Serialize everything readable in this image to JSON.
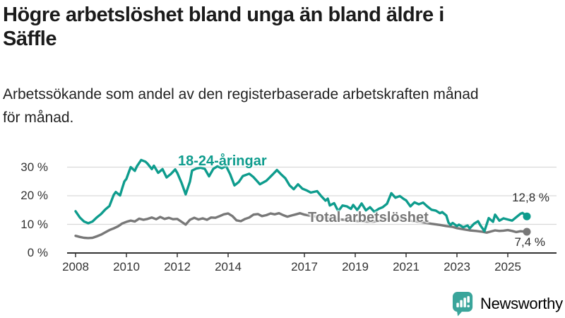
{
  "header": {
    "title": "Högre arbetslöshet bland unga än bland äldre i\nSäffle",
    "subtitle": "Arbetssökande som andel av den registerbaserade arbetskraften månad\nför månad."
  },
  "branding": {
    "logo_text": "Newsworthy",
    "logo_icon": "speech-bubble-bar-chart",
    "logo_color": "#35a39a"
  },
  "colors": {
    "accent_teal": "#0e9c8d",
    "line_gray": "#787878",
    "grid": "#d9d9d9",
    "axis": "#333333",
    "text": "#1b1b1b"
  },
  "chart_data": {
    "type": "line",
    "unit": "%",
    "grid": "horizontal",
    "xlim": [
      2007.7,
      2026.3
    ],
    "ylim": [
      0,
      33
    ],
    "x_ticks": [
      {
        "value": 2008,
        "label": "2008"
      },
      {
        "value": 2010,
        "label": "2010"
      },
      {
        "value": 2012,
        "label": "2012"
      },
      {
        "value": 2014,
        "label": "2014"
      },
      {
        "value": 2017,
        "label": "2017"
      },
      {
        "value": 2019,
        "label": "2019"
      },
      {
        "value": 2021,
        "label": "2021"
      },
      {
        "value": 2023,
        "label": "2023"
      },
      {
        "value": 2025,
        "label": "2025"
      }
    ],
    "y_ticks": [
      {
        "value": 0,
        "label": "0 %"
      },
      {
        "value": 10,
        "label": "10 %"
      },
      {
        "value": 20,
        "label": "20 %"
      },
      {
        "value": 30,
        "label": "30 %"
      }
    ],
    "series": [
      {
        "name": "18-24-åringar",
        "color": "#0e9c8d",
        "end_label": "12,8 %",
        "end_value": 12.8,
        "points": [
          [
            2008.0,
            14.6
          ],
          [
            2008.17,
            12.4
          ],
          [
            2008.33,
            11.0
          ],
          [
            2008.5,
            10.4
          ],
          [
            2008.67,
            11.0
          ],
          [
            2008.83,
            12.4
          ],
          [
            2009.0,
            13.6
          ],
          [
            2009.17,
            15.2
          ],
          [
            2009.33,
            16.4
          ],
          [
            2009.5,
            20.3
          ],
          [
            2009.58,
            21.3
          ],
          [
            2009.75,
            20.1
          ],
          [
            2009.83,
            22.5
          ],
          [
            2009.92,
            25.0
          ],
          [
            2010.0,
            25.9
          ],
          [
            2010.08,
            27.9
          ],
          [
            2010.17,
            30.0
          ],
          [
            2010.33,
            28.7
          ],
          [
            2010.42,
            30.4
          ],
          [
            2010.58,
            32.5
          ],
          [
            2010.75,
            31.9
          ],
          [
            2010.83,
            31.2
          ],
          [
            2011.0,
            29.3
          ],
          [
            2011.08,
            30.5
          ],
          [
            2011.25,
            28.0
          ],
          [
            2011.42,
            29.3
          ],
          [
            2011.58,
            26.4
          ],
          [
            2011.75,
            27.6
          ],
          [
            2011.92,
            29.2
          ],
          [
            2012.0,
            28.0
          ],
          [
            2012.17,
            24.5
          ],
          [
            2012.33,
            20.5
          ],
          [
            2012.5,
            25.0
          ],
          [
            2012.58,
            28.8
          ],
          [
            2012.75,
            29.5
          ],
          [
            2012.92,
            29.8
          ],
          [
            2013.08,
            29.4
          ],
          [
            2013.25,
            26.8
          ],
          [
            2013.42,
            29.4
          ],
          [
            2013.58,
            30.3
          ],
          [
            2013.75,
            29.6
          ],
          [
            2013.92,
            30.4
          ],
          [
            2014.08,
            27.5
          ],
          [
            2014.25,
            23.6
          ],
          [
            2014.42,
            24.8
          ],
          [
            2014.58,
            26.9
          ],
          [
            2014.83,
            27.7
          ],
          [
            2015.0,
            26.5
          ],
          [
            2015.25,
            24.0
          ],
          [
            2015.5,
            25.2
          ],
          [
            2015.75,
            27.4
          ],
          [
            2015.92,
            29.0
          ],
          [
            2016.08,
            27.5
          ],
          [
            2016.25,
            26.1
          ],
          [
            2016.42,
            23.6
          ],
          [
            2016.58,
            22.3
          ],
          [
            2016.75,
            24.0
          ],
          [
            2016.92,
            22.5
          ],
          [
            2017.08,
            21.9
          ],
          [
            2017.25,
            21.1
          ],
          [
            2017.5,
            21.6
          ],
          [
            2017.67,
            19.8
          ],
          [
            2017.83,
            18.3
          ],
          [
            2017.92,
            19.0
          ],
          [
            2018.0,
            16.6
          ],
          [
            2018.17,
            17.4
          ],
          [
            2018.33,
            14.6
          ],
          [
            2018.5,
            16.6
          ],
          [
            2018.67,
            16.3
          ],
          [
            2018.83,
            15.4
          ],
          [
            2018.92,
            16.8
          ],
          [
            2019.08,
            15.0
          ],
          [
            2019.25,
            17.3
          ],
          [
            2019.42,
            14.9
          ],
          [
            2019.58,
            16.0
          ],
          [
            2019.75,
            14.4
          ],
          [
            2019.92,
            15.4
          ],
          [
            2020.08,
            16.0
          ],
          [
            2020.25,
            17.2
          ],
          [
            2020.42,
            20.9
          ],
          [
            2020.58,
            19.3
          ],
          [
            2020.75,
            19.9
          ],
          [
            2020.92,
            18.8
          ],
          [
            2021.0,
            18.4
          ],
          [
            2021.17,
            16.3
          ],
          [
            2021.33,
            17.7
          ],
          [
            2021.5,
            17.0
          ],
          [
            2021.67,
            17.6
          ],
          [
            2021.83,
            16.3
          ],
          [
            2022.0,
            15.1
          ],
          [
            2022.17,
            14.8
          ],
          [
            2022.33,
            13.9
          ],
          [
            2022.42,
            14.3
          ],
          [
            2022.58,
            13.1
          ],
          [
            2022.67,
            10.6
          ],
          [
            2022.75,
            9.8
          ],
          [
            2022.83,
            10.5
          ],
          [
            2023.0,
            9.4
          ],
          [
            2023.08,
            9.9
          ],
          [
            2023.25,
            9.0
          ],
          [
            2023.42,
            9.6
          ],
          [
            2023.5,
            8.6
          ],
          [
            2023.67,
            10.2
          ],
          [
            2023.83,
            11.1
          ],
          [
            2023.92,
            9.7
          ],
          [
            2024.08,
            7.6
          ],
          [
            2024.25,
            12.2
          ],
          [
            2024.42,
            10.9
          ],
          [
            2024.5,
            13.4
          ],
          [
            2024.67,
            11.3
          ],
          [
            2024.83,
            12.1
          ],
          [
            2025.0,
            11.7
          ],
          [
            2025.17,
            11.3
          ],
          [
            2025.33,
            12.5
          ],
          [
            2025.5,
            13.7
          ],
          [
            2025.58,
            14.0
          ],
          [
            2025.75,
            12.8
          ]
        ]
      },
      {
        "name": "Total arbetslöshet",
        "color": "#787878",
        "end_label": "7,4 %",
        "end_value": 7.4,
        "points": [
          [
            2008.0,
            6.0
          ],
          [
            2008.17,
            5.6
          ],
          [
            2008.33,
            5.3
          ],
          [
            2008.5,
            5.2
          ],
          [
            2008.67,
            5.3
          ],
          [
            2008.83,
            5.8
          ],
          [
            2009.0,
            6.4
          ],
          [
            2009.17,
            7.2
          ],
          [
            2009.33,
            8.0
          ],
          [
            2009.5,
            8.6
          ],
          [
            2009.67,
            9.3
          ],
          [
            2009.83,
            10.3
          ],
          [
            2010.0,
            10.9
          ],
          [
            2010.17,
            11.3
          ],
          [
            2010.33,
            11.0
          ],
          [
            2010.5,
            12.0
          ],
          [
            2010.67,
            11.6
          ],
          [
            2010.83,
            11.9
          ],
          [
            2011.0,
            12.4
          ],
          [
            2011.17,
            11.8
          ],
          [
            2011.33,
            12.6
          ],
          [
            2011.5,
            11.9
          ],
          [
            2011.67,
            12.3
          ],
          [
            2011.83,
            11.8
          ],
          [
            2012.0,
            11.9
          ],
          [
            2012.17,
            10.9
          ],
          [
            2012.33,
            9.9
          ],
          [
            2012.5,
            11.6
          ],
          [
            2012.67,
            12.3
          ],
          [
            2012.83,
            11.7
          ],
          [
            2013.0,
            12.1
          ],
          [
            2013.17,
            11.6
          ],
          [
            2013.33,
            12.4
          ],
          [
            2013.5,
            12.3
          ],
          [
            2013.67,
            12.9
          ],
          [
            2013.83,
            13.5
          ],
          [
            2014.0,
            13.8
          ],
          [
            2014.17,
            12.9
          ],
          [
            2014.33,
            11.4
          ],
          [
            2014.5,
            11.1
          ],
          [
            2014.67,
            11.9
          ],
          [
            2014.83,
            12.4
          ],
          [
            2015.0,
            13.4
          ],
          [
            2015.17,
            13.6
          ],
          [
            2015.33,
            12.9
          ],
          [
            2015.5,
            13.2
          ],
          [
            2015.67,
            13.8
          ],
          [
            2015.83,
            13.5
          ],
          [
            2016.0,
            13.9
          ],
          [
            2016.17,
            13.2
          ],
          [
            2016.33,
            12.7
          ],
          [
            2016.5,
            13.1
          ],
          [
            2016.67,
            13.5
          ],
          [
            2016.83,
            13.9
          ],
          [
            2017.0,
            13.4
          ],
          [
            2017.25,
            13.0
          ],
          [
            2017.5,
            12.7
          ],
          [
            2017.75,
            12.4
          ],
          [
            2018.0,
            12.1
          ],
          [
            2018.33,
            11.8
          ],
          [
            2018.67,
            11.5
          ],
          [
            2019.0,
            11.2
          ],
          [
            2019.33,
            11.0
          ],
          [
            2019.67,
            10.9
          ],
          [
            2020.0,
            11.3
          ],
          [
            2020.33,
            12.0
          ],
          [
            2020.67,
            11.8
          ],
          [
            2021.0,
            11.5
          ],
          [
            2021.33,
            11.1
          ],
          [
            2021.67,
            10.7
          ],
          [
            2022.0,
            10.2
          ],
          [
            2022.33,
            9.8
          ],
          [
            2022.58,
            9.4
          ],
          [
            2022.83,
            9.1
          ],
          [
            2023.0,
            8.7
          ],
          [
            2023.25,
            8.3
          ],
          [
            2023.5,
            7.9
          ],
          [
            2023.75,
            7.7
          ],
          [
            2024.0,
            7.4
          ],
          [
            2024.17,
            7.1
          ],
          [
            2024.33,
            7.5
          ],
          [
            2024.5,
            7.9
          ],
          [
            2024.67,
            7.7
          ],
          [
            2024.83,
            7.8
          ],
          [
            2025.0,
            8.0
          ],
          [
            2025.17,
            7.7
          ],
          [
            2025.33,
            7.3
          ],
          [
            2025.5,
            7.6
          ],
          [
            2025.75,
            7.4
          ]
        ]
      }
    ]
  }
}
